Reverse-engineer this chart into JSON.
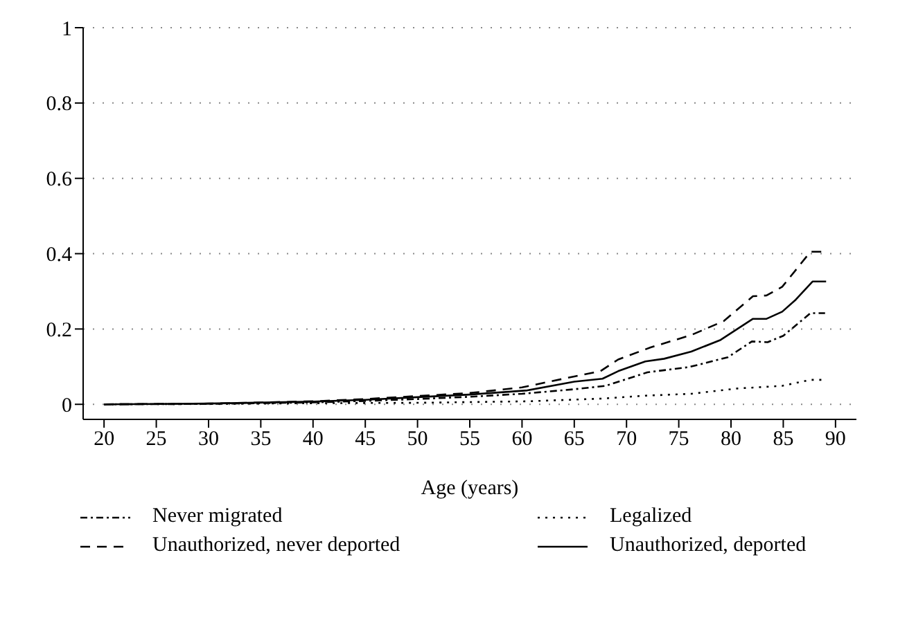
{
  "chart_data": {
    "type": "line",
    "xlabel": "Age (years)",
    "xlim": [
      18,
      92
    ],
    "xticks": [
      20,
      25,
      30,
      35,
      40,
      45,
      50,
      55,
      60,
      65,
      70,
      75,
      80,
      85,
      90
    ],
    "ylim": [
      -0.04,
      1
    ],
    "yticks": [
      0,
      0.2,
      0.4,
      0.6,
      0.8,
      1
    ],
    "grid": "y",
    "legend": "bottom",
    "marker": "none",
    "series": [
      {
        "name": "Never migrated",
        "color": "#000000",
        "line_style": "dashdot",
        "x": [
          20,
          30,
          40,
          45,
          50,
          55,
          60,
          65,
          68,
          72,
          76,
          79.7,
          82,
          83.5,
          85,
          87.6,
          89
        ],
        "values": [
          0,
          0.001,
          0.005,
          0.009,
          0.014,
          0.02,
          0.028,
          0.04,
          0.049,
          0.085,
          0.099,
          0.125,
          0.167,
          0.165,
          0.182,
          0.242,
          0.242
        ]
      },
      {
        "name": "Legalized",
        "color": "#000000",
        "line_style": "dotted",
        "x": [
          20,
          30,
          40,
          50,
          60.5,
          67.5,
          71.8,
          76.2,
          80.6,
          84.9,
          87.6,
          89
        ],
        "values": [
          0,
          0.001,
          0.003,
          0.004,
          0.008,
          0.015,
          0.023,
          0.028,
          0.042,
          0.049,
          0.065,
          0.065
        ]
      },
      {
        "name": "Unauthorized, never deported",
        "color": "#000000",
        "line_style": "dashed",
        "x": [
          20,
          30,
          40,
          45,
          50,
          55,
          60,
          65,
          67.5,
          69.2,
          72.3,
          76.2,
          79.3,
          82.1,
          83.4,
          84.9,
          87.6,
          89
        ],
        "values": [
          0,
          0.002,
          0.008,
          0.014,
          0.022,
          0.03,
          0.045,
          0.074,
          0.088,
          0.119,
          0.151,
          0.184,
          0.221,
          0.287,
          0.289,
          0.312,
          0.405,
          0.405
        ]
      },
      {
        "name": "Unauthorized, deported",
        "color": "#000000",
        "line_style": "solid",
        "x": [
          20,
          30,
          40,
          45,
          50,
          55,
          60.5,
          65,
          67.7,
          69.2,
          71.8,
          73.6,
          76.2,
          79,
          82.1,
          83.4,
          84.9,
          86.2,
          87.8,
          89.1
        ],
        "values": [
          0,
          0.002,
          0.007,
          0.012,
          0.019,
          0.026,
          0.037,
          0.06,
          0.068,
          0.088,
          0.114,
          0.121,
          0.14,
          0.171,
          0.227,
          0.227,
          0.246,
          0.278,
          0.326,
          0.326
        ]
      }
    ]
  }
}
